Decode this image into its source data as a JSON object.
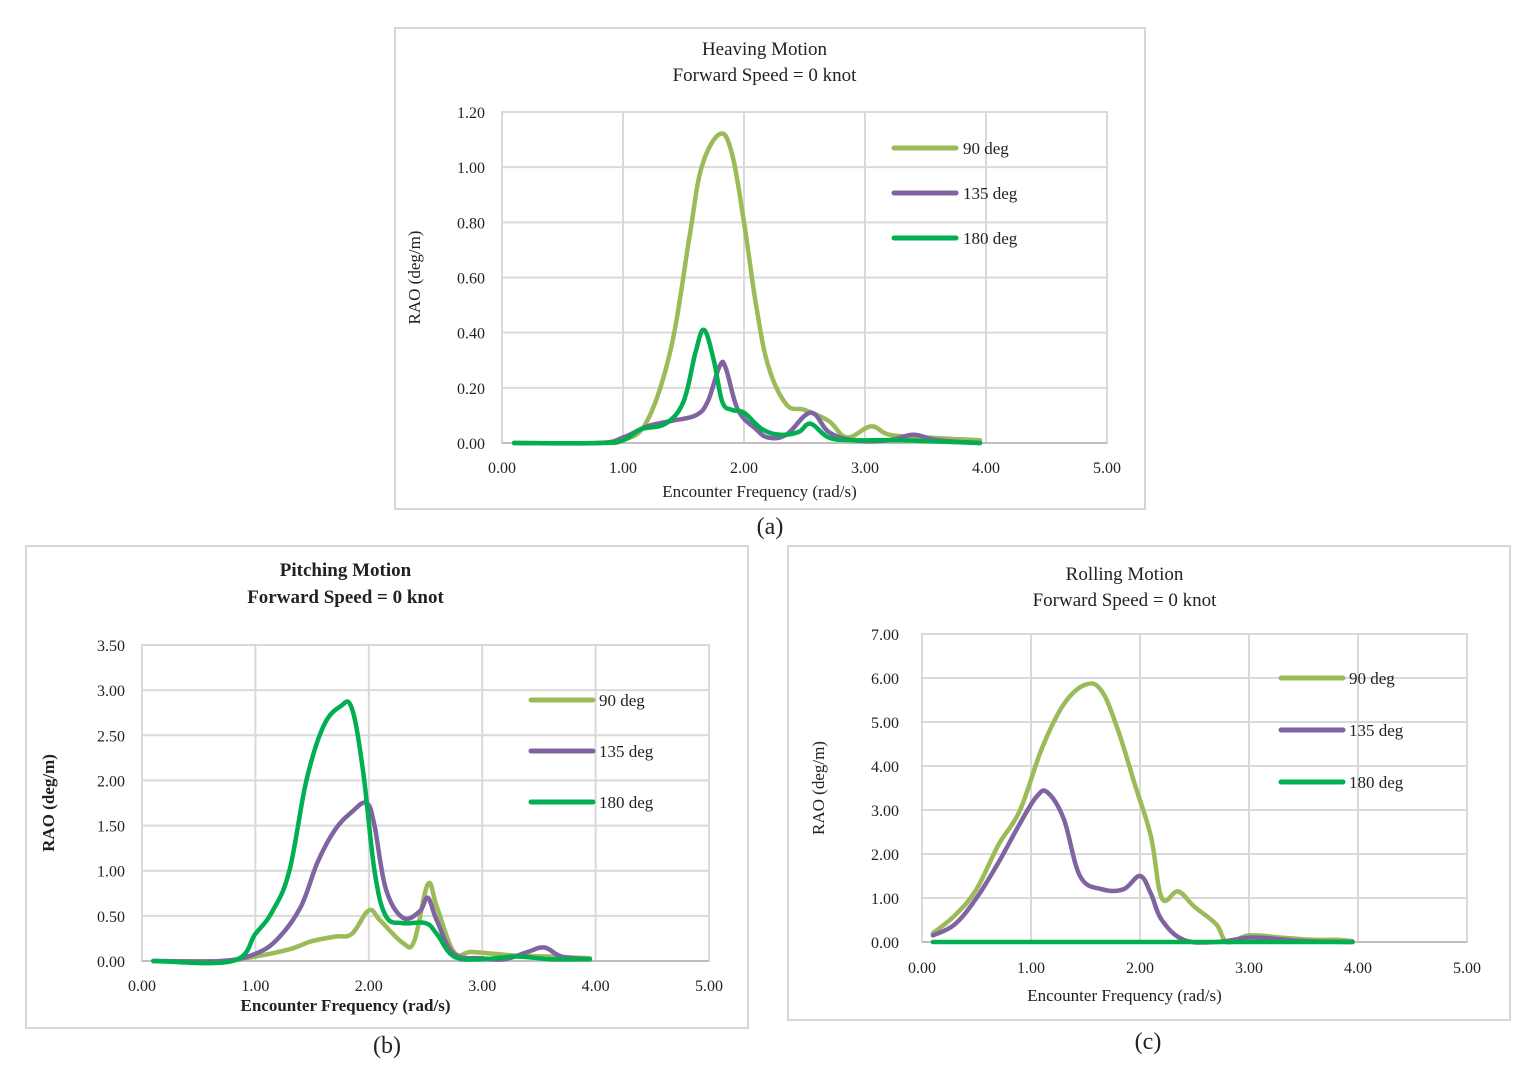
{
  "captions": [
    "(a)",
    "(b)",
    "(c)"
  ],
  "legend_colors": {
    "90 deg": "#9bbb59",
    "135 deg": "#8064a2",
    "180 deg": "#00b050"
  },
  "chart_data": [
    {
      "type": "line",
      "title": "Heaving Motion",
      "subtitle": "Forward Speed = 0 knot",
      "xlabel": "Encounter Frequency (rad/s)",
      "ylabel": "RAO (deg/m)",
      "xlim": [
        0,
        5
      ],
      "ylim": [
        0,
        1.2
      ],
      "xticks": [
        "0.00",
        "1.00",
        "2.00",
        "3.00",
        "4.00",
        "5.00"
      ],
      "yticks": [
        "0.00",
        "0.20",
        "0.40",
        "0.60",
        "0.80",
        "1.00",
        "1.20"
      ],
      "grid": true,
      "legend_position": "top-right",
      "series": [
        {
          "name": "90 deg",
          "color": "#9bbb59",
          "points": [
            [
              0.1,
              0
            ],
            [
              0.8,
              0
            ],
            [
              1.0,
              0.01
            ],
            [
              1.2,
              0.08
            ],
            [
              1.4,
              0.35
            ],
            [
              1.55,
              0.75
            ],
            [
              1.65,
              1.0
            ],
            [
              1.8,
              1.12
            ],
            [
              1.9,
              1.05
            ],
            [
              2.0,
              0.8
            ],
            [
              2.1,
              0.5
            ],
            [
              2.2,
              0.28
            ],
            [
              2.35,
              0.14
            ],
            [
              2.5,
              0.12
            ],
            [
              2.7,
              0.08
            ],
            [
              2.85,
              0.02
            ],
            [
              3.05,
              0.06
            ],
            [
              3.2,
              0.03
            ],
            [
              3.5,
              0.02
            ],
            [
              3.95,
              0.01
            ]
          ]
        },
        {
          "name": "135 deg",
          "color": "#8064a2",
          "points": [
            [
              0.1,
              0
            ],
            [
              0.8,
              0
            ],
            [
              1.0,
              0.02
            ],
            [
              1.2,
              0.06
            ],
            [
              1.4,
              0.08
            ],
            [
              1.6,
              0.1
            ],
            [
              1.7,
              0.15
            ],
            [
              1.8,
              0.28
            ],
            [
              1.85,
              0.27
            ],
            [
              1.95,
              0.12
            ],
            [
              2.1,
              0.05
            ],
            [
              2.2,
              0.02
            ],
            [
              2.35,
              0.03
            ],
            [
              2.55,
              0.11
            ],
            [
              2.7,
              0.04
            ],
            [
              2.9,
              0.01
            ],
            [
              3.2,
              0.01
            ],
            [
              3.4,
              0.03
            ],
            [
              3.6,
              0.01
            ],
            [
              3.95,
              0
            ]
          ]
        },
        {
          "name": "180 deg",
          "color": "#00b050",
          "points": [
            [
              0.1,
              0
            ],
            [
              0.8,
              0
            ],
            [
              1.0,
              0.01
            ],
            [
              1.15,
              0.05
            ],
            [
              1.35,
              0.07
            ],
            [
              1.5,
              0.15
            ],
            [
              1.6,
              0.33
            ],
            [
              1.67,
              0.41
            ],
            [
              1.75,
              0.3
            ],
            [
              1.82,
              0.15
            ],
            [
              1.9,
              0.12
            ],
            [
              2.0,
              0.11
            ],
            [
              2.15,
              0.05
            ],
            [
              2.3,
              0.03
            ],
            [
              2.45,
              0.04
            ],
            [
              2.55,
              0.07
            ],
            [
              2.7,
              0.02
            ],
            [
              2.9,
              0.01
            ],
            [
              3.3,
              0.01
            ],
            [
              3.95,
              0
            ]
          ]
        }
      ]
    },
    {
      "type": "line",
      "title": "Pitching Motion",
      "subtitle": "Forward Speed = 0 knot",
      "xlabel": "Encounter Frequency (rad/s)",
      "ylabel": "RAO (deg/m)",
      "xlim": [
        0,
        5
      ],
      "ylim": [
        0,
        3.5
      ],
      "xticks": [
        "0.00",
        "1.00",
        "2.00",
        "3.00",
        "4.00",
        "5.00"
      ],
      "yticks": [
        "0.00",
        "0.50",
        "1.00",
        "1.50",
        "2.00",
        "2.50",
        "3.00",
        "3.50"
      ],
      "grid": true,
      "legend_position": "top-right",
      "series": [
        {
          "name": "90 deg",
          "color": "#9bbb59",
          "points": [
            [
              0.1,
              0
            ],
            [
              0.7,
              0
            ],
            [
              1.0,
              0.05
            ],
            [
              1.3,
              0.13
            ],
            [
              1.5,
              0.22
            ],
            [
              1.7,
              0.27
            ],
            [
              1.85,
              0.3
            ],
            [
              2.0,
              0.56
            ],
            [
              2.1,
              0.45
            ],
            [
              2.3,
              0.2
            ],
            [
              2.4,
              0.22
            ],
            [
              2.52,
              0.85
            ],
            [
              2.6,
              0.6
            ],
            [
              2.75,
              0.1
            ],
            [
              2.9,
              0.1
            ],
            [
              3.1,
              0.08
            ],
            [
              3.3,
              0.06
            ],
            [
              3.6,
              0.05
            ],
            [
              3.95,
              0.03
            ]
          ]
        },
        {
          "name": "135 deg",
          "color": "#8064a2",
          "points": [
            [
              0.1,
              0
            ],
            [
              0.7,
              0
            ],
            [
              1.0,
              0.08
            ],
            [
              1.2,
              0.25
            ],
            [
              1.4,
              0.6
            ],
            [
              1.55,
              1.1
            ],
            [
              1.7,
              1.45
            ],
            [
              1.85,
              1.65
            ],
            [
              1.98,
              1.75
            ],
            [
              2.05,
              1.5
            ],
            [
              2.15,
              0.8
            ],
            [
              2.3,
              0.48
            ],
            [
              2.45,
              0.55
            ],
            [
              2.52,
              0.7
            ],
            [
              2.6,
              0.45
            ],
            [
              2.75,
              0.08
            ],
            [
              3.0,
              0.03
            ],
            [
              3.2,
              0.02
            ],
            [
              3.4,
              0.1
            ],
            [
              3.55,
              0.15
            ],
            [
              3.7,
              0.05
            ],
            [
              3.95,
              0.02
            ]
          ]
        },
        {
          "name": "180 deg",
          "color": "#00b050",
          "points": [
            [
              0.1,
              0
            ],
            [
              0.8,
              0
            ],
            [
              1.0,
              0.3
            ],
            [
              1.15,
              0.55
            ],
            [
              1.3,
              1.0
            ],
            [
              1.45,
              2.0
            ],
            [
              1.6,
              2.6
            ],
            [
              1.75,
              2.82
            ],
            [
              1.85,
              2.8
            ],
            [
              1.95,
              2.1
            ],
            [
              2.05,
              1.0
            ],
            [
              2.15,
              0.5
            ],
            [
              2.3,
              0.42
            ],
            [
              2.5,
              0.42
            ],
            [
              2.6,
              0.3
            ],
            [
              2.75,
              0.05
            ],
            [
              3.0,
              0.02
            ],
            [
              3.3,
              0.05
            ],
            [
              3.6,
              0.02
            ],
            [
              3.95,
              0.02
            ]
          ]
        }
      ]
    },
    {
      "type": "line",
      "title": "Rolling Motion",
      "subtitle": "Forward Speed = 0 knot",
      "xlabel": "Encounter Frequency (rad/s)",
      "ylabel": "RAO (deg/m)",
      "xlim": [
        0,
        5
      ],
      "ylim": [
        0,
        7
      ],
      "xticks": [
        "0.00",
        "1.00",
        "2.00",
        "3.00",
        "4.00",
        "5.00"
      ],
      "yticks": [
        "0.00",
        "1.00",
        "2.00",
        "3.00",
        "4.00",
        "5.00",
        "6.00",
        "7.00"
      ],
      "grid": true,
      "legend_position": "top-right",
      "series": [
        {
          "name": "90 deg",
          "color": "#9bbb59",
          "points": [
            [
              0.1,
              0.2
            ],
            [
              0.3,
              0.6
            ],
            [
              0.5,
              1.2
            ],
            [
              0.7,
              2.2
            ],
            [
              0.9,
              3.0
            ],
            [
              1.1,
              4.4
            ],
            [
              1.3,
              5.4
            ],
            [
              1.5,
              5.85
            ],
            [
              1.65,
              5.7
            ],
            [
              1.8,
              4.8
            ],
            [
              1.95,
              3.6
            ],
            [
              2.1,
              2.4
            ],
            [
              2.2,
              1.0
            ],
            [
              2.35,
              1.15
            ],
            [
              2.5,
              0.8
            ],
            [
              2.7,
              0.4
            ],
            [
              2.8,
              0
            ],
            [
              3.0,
              0.15
            ],
            [
              3.3,
              0.1
            ],
            [
              3.6,
              0.05
            ],
            [
              3.8,
              0.05
            ],
            [
              3.95,
              0.02
            ]
          ]
        },
        {
          "name": "135 deg",
          "color": "#8064a2",
          "points": [
            [
              0.1,
              0.15
            ],
            [
              0.3,
              0.4
            ],
            [
              0.5,
              1.0
            ],
            [
              0.7,
              1.8
            ],
            [
              0.9,
              2.7
            ],
            [
              1.05,
              3.3
            ],
            [
              1.15,
              3.4
            ],
            [
              1.3,
              2.8
            ],
            [
              1.45,
              1.5
            ],
            [
              1.65,
              1.2
            ],
            [
              1.85,
              1.2
            ],
            [
              2.0,
              1.5
            ],
            [
              2.1,
              1.1
            ],
            [
              2.2,
              0.5
            ],
            [
              2.4,
              0.05
            ],
            [
              2.7,
              0
            ],
            [
              3.0,
              0.1
            ],
            [
              3.2,
              0.08
            ],
            [
              3.5,
              0.02
            ],
            [
              3.95,
              0
            ]
          ]
        },
        {
          "name": "180 deg",
          "color": "#00b050",
          "points": [
            [
              0.1,
              0
            ],
            [
              1.0,
              0
            ],
            [
              2.0,
              0
            ],
            [
              3.0,
              0
            ],
            [
              3.95,
              0
            ]
          ]
        }
      ]
    }
  ]
}
